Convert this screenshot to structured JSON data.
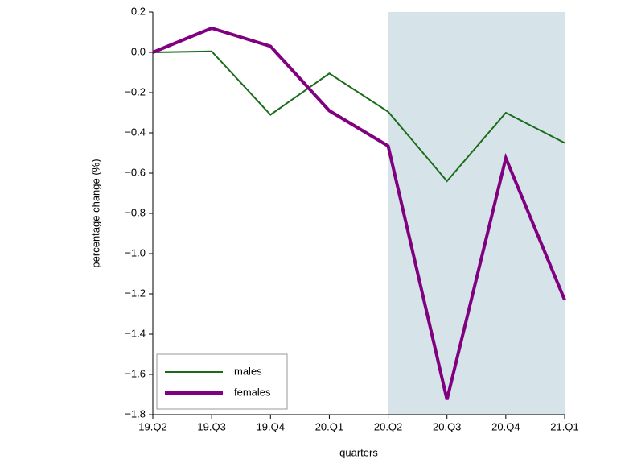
{
  "chart_data": {
    "type": "line",
    "x_label": "quarters",
    "y_label": "percentage change (%)",
    "categories": [
      "19.Q2",
      "19.Q3",
      "19.Q4",
      "20.Q1",
      "20.Q2",
      "20.Q3",
      "20.Q4",
      "21.Q1"
    ],
    "series": [
      {
        "name": "males",
        "color": "#1a6b1a",
        "width": 2,
        "values": [
          0,
          0.005,
          -0.31,
          -0.105,
          -0.295,
          -0.64,
          -0.3,
          -0.45
        ]
      },
      {
        "name": "females",
        "color": "#800080",
        "width": 4,
        "values": [
          0,
          0.12,
          0.03,
          -0.29,
          -0.465,
          -1.725,
          -0.525,
          -1.23
        ]
      }
    ],
    "ylim": [
      -1.8,
      0.2
    ],
    "yticks": [
      {
        "value": -1.8,
        "label": "−1.8"
      },
      {
        "value": -1.6,
        "label": "−1.6"
      },
      {
        "value": -1.4,
        "label": "−1.4"
      },
      {
        "value": -1.2,
        "label": "−1.2"
      },
      {
        "value": -1.0,
        "label": "−1.0"
      },
      {
        "value": -0.8,
        "label": "−0.8"
      },
      {
        "value": -0.6,
        "label": "−0.6"
      },
      {
        "value": -0.4,
        "label": "−0.4"
      },
      {
        "value": -0.2,
        "label": "−0.2"
      },
      {
        "value": 0,
        "label": "0.0"
      },
      0.2
    ],
    "shaded": {
      "start": "20.Q2",
      "end": "21.Q1",
      "color": "#d6e4ea"
    },
    "legend": "lower left",
    "grid": false
  }
}
